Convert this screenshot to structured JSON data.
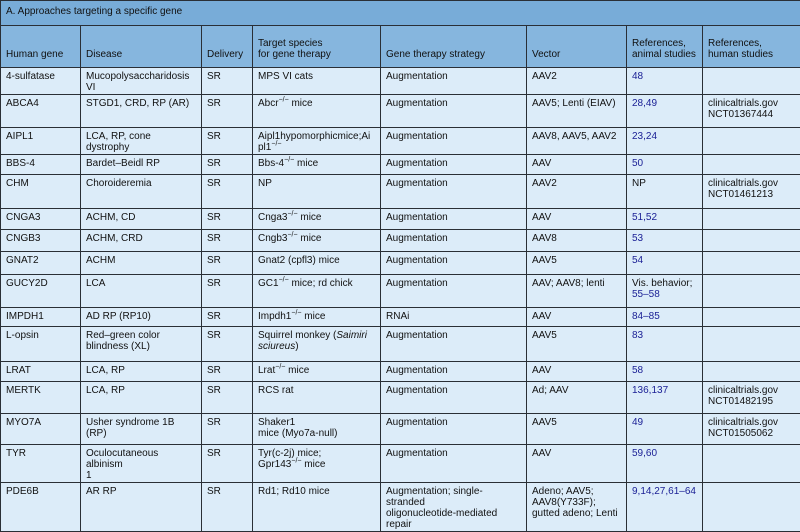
{
  "title": "A. Approaches targeting a specific gene",
  "columns": [
    "Human gene",
    "Disease",
    "Delivery",
    "Target species\nfor gene therapy",
    "Gene therapy strategy",
    "Vector",
    "References,\nanimal studies",
    "References,\nhuman studies"
  ],
  "colors": {
    "title_bg": "#78acd8",
    "header_bg": "#86b6de",
    "cell_bg": "#dcecf9",
    "reference_link": "#1c2196"
  },
  "rows": [
    {
      "gene": "4-sulfatase",
      "disease": "Mucopolysaccharidosis\nVI",
      "delivery": "SR",
      "species": "MPS VI cats",
      "strategy": "Augmentation",
      "vector": "AAV2",
      "ref_animal_note": "",
      "ref_animal": "48",
      "ref_human": ""
    },
    {
      "gene": "ABCA4",
      "disease": "STGD1, CRD, RP (AR)",
      "delivery": "SR",
      "species": "Abcr−/− mice",
      "strategy": "Augmentation",
      "vector": "AAV5; Lenti (EIAV)",
      "ref_animal_note": "",
      "ref_animal": "28,49",
      "ref_human": "clinicaltrials.gov\nNCT01367444"
    },
    {
      "gene": "AIPL1",
      "disease": "LCA, RP, cone dystrophy",
      "delivery": "SR",
      "species": "Aipl1hypomorphicmice;Aipl1−/−",
      "strategy": "Augmentation",
      "vector": "AAV8, AAV5, AAV2",
      "ref_animal_note": "",
      "ref_animal": "23,24",
      "ref_human": ""
    },
    {
      "gene": "BBS-4",
      "disease": "Bardet–Beidl RP",
      "delivery": "SR",
      "species": "Bbs-4−/− mice",
      "strategy": "Augmentation",
      "vector": "AAV",
      "ref_animal_note": "",
      "ref_animal": "50",
      "ref_human": ""
    },
    {
      "gene": "CHM",
      "disease": "Choroideremia",
      "delivery": "SR",
      "species": "NP",
      "strategy": "Augmentation",
      "vector": "AAV2",
      "ref_animal_note": "NP",
      "ref_animal": "",
      "ref_human": "clinicaltrials.gov\nNCT01461213"
    },
    {
      "gene": "CNGA3",
      "disease": "ACHM, CD",
      "delivery": "SR",
      "species": "Cnga3−/− mice",
      "strategy": "Augmentation",
      "vector": "AAV",
      "ref_animal_note": "",
      "ref_animal": "51,52",
      "ref_human": ""
    },
    {
      "gene": "CNGB3",
      "disease": "ACHM, CRD",
      "delivery": "SR",
      "species": "Cngb3−/− mice",
      "strategy": "Augmentation",
      "vector": "AAV8",
      "ref_animal_note": "",
      "ref_animal": "53",
      "ref_human": ""
    },
    {
      "gene": "GNAT2",
      "disease": "ACHM",
      "delivery": "SR",
      "species": "Gnat2 (cpfl3) mice",
      "strategy": "Augmentation",
      "vector": "AAV5",
      "ref_animal_note": "",
      "ref_animal": "54",
      "ref_human": ""
    },
    {
      "gene": "GUCY2D",
      "disease": "LCA",
      "delivery": "SR",
      "species": "GC1−/− mice; rd chick",
      "strategy": "Augmentation",
      "vector": "AAV; AAV8; lenti",
      "ref_animal_note": "Vis. behavior;",
      "ref_animal": "55–58",
      "ref_human": ""
    },
    {
      "gene": "IMPDH1",
      "disease": "AD RP (RP10)",
      "delivery": "SR",
      "species": "Impdh1−/− mice",
      "strategy": "RNAi",
      "vector": "AAV",
      "ref_animal_note": "",
      "ref_animal": "84–85",
      "ref_human": ""
    },
    {
      "gene": "L-opsin",
      "disease": "Red–green color\nblindness (XL)",
      "delivery": "SR",
      "species": "Squirrel monkey (Saimiri\nsciureus)",
      "strategy": "Augmentation",
      "vector": "AAV5",
      "ref_animal_note": "",
      "ref_animal": "83",
      "ref_human": ""
    },
    {
      "gene": "LRAT",
      "disease": "LCA, RP",
      "delivery": "SR",
      "species": "Lrat−/− mice",
      "strategy": "Augmentation",
      "vector": "AAV",
      "ref_animal_note": "",
      "ref_animal": "58",
      "ref_human": ""
    },
    {
      "gene": "MERTK",
      "disease": "LCA, RP",
      "delivery": "SR",
      "species": "RCS rat",
      "strategy": "Augmentation",
      "vector": "Ad; AAV",
      "ref_animal_note": "",
      "ref_animal": "136,137",
      "ref_human": "clinicaltrials.gov\nNCT01482195"
    },
    {
      "gene": "MYO7A",
      "disease": "Usher syndrome 1B (RP)",
      "delivery": "SR",
      "species": "Shaker1\nmice (Myo7a-null)",
      "strategy": "Augmentation",
      "vector": "AAV5",
      "ref_animal_note": "",
      "ref_animal": "49",
      "ref_human": "clinicaltrials.gov\nNCT01505062"
    },
    {
      "gene": "TYR",
      "disease": "Oculocutaneous albinism\n1",
      "delivery": "SR",
      "species": "Tyr(c-2j) mice;\nGpr143−/− mice",
      "strategy": "Augmentation",
      "vector": "AAV",
      "ref_animal_note": "",
      "ref_animal": "59,60",
      "ref_human": ""
    },
    {
      "gene": "PDE6B",
      "disease": "AR RP",
      "delivery": "SR",
      "species": "Rd1; Rd10 mice",
      "strategy": "Augmentation; single-stranded\noligonucleotide-mediated repair",
      "vector": "Adeno; AAV5;\nAAV8(Y733F);\ngutted adeno; Lenti",
      "ref_animal_note": "",
      "ref_animal": "9,14,27,61–64",
      "ref_human": ""
    }
  ]
}
